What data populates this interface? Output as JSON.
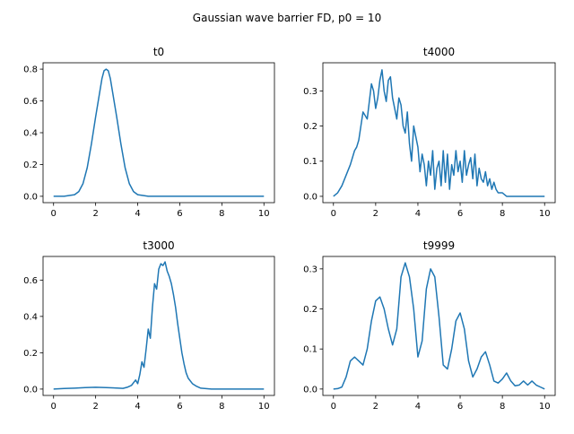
{
  "figure": {
    "suptitle": "Gaussian wave barrier FD, p0 = 10"
  },
  "style": {
    "line_color": "#1f77b4",
    "axis_color": "#000000",
    "background": "#ffffff"
  },
  "chart_data": [
    {
      "type": "line",
      "title": "t0",
      "xlabel": "",
      "ylabel": "",
      "xlim": [
        -0.5,
        10.5
      ],
      "ylim": [
        -0.04,
        0.84
      ],
      "xticks": [
        0,
        2,
        4,
        6,
        8,
        10
      ],
      "xtick_labels": [
        "0",
        "2",
        "4",
        "6",
        "8",
        "10"
      ],
      "yticks": [
        0.0,
        0.2,
        0.4,
        0.6,
        0.8
      ],
      "ytick_labels": [
        "0.0",
        "0.2",
        "0.4",
        "0.6",
        "0.8"
      ],
      "grid": false,
      "series": [
        {
          "x": [
            0,
            0.5,
            1.0,
            1.2,
            1.4,
            1.6,
            1.8,
            2.0,
            2.2,
            2.3,
            2.4,
            2.5,
            2.6,
            2.7,
            2.8,
            3.0,
            3.2,
            3.4,
            3.6,
            3.8,
            4.0,
            4.5,
            5,
            6,
            7,
            8,
            9,
            10
          ],
          "y": [
            0,
            0,
            0.01,
            0.03,
            0.08,
            0.18,
            0.33,
            0.5,
            0.66,
            0.74,
            0.79,
            0.8,
            0.79,
            0.74,
            0.66,
            0.5,
            0.33,
            0.18,
            0.08,
            0.03,
            0.01,
            0,
            0,
            0,
            0,
            0,
            0,
            0
          ]
        }
      ]
    },
    {
      "type": "line",
      "title": "t4000",
      "xlabel": "",
      "ylabel": "",
      "xlim": [
        -0.5,
        10.5
      ],
      "ylim": [
        -0.018,
        0.38
      ],
      "xticks": [
        0,
        2,
        4,
        6,
        8,
        10
      ],
      "xtick_labels": [
        "0",
        "2",
        "4",
        "6",
        "8",
        "10"
      ],
      "yticks": [
        0.0,
        0.1,
        0.2,
        0.3
      ],
      "ytick_labels": [
        "0.0",
        "0.1",
        "0.2",
        "0.3"
      ],
      "grid": false,
      "series": [
        {
          "x": [
            0,
            0.2,
            0.4,
            0.6,
            0.8,
            1.0,
            1.1,
            1.2,
            1.3,
            1.4,
            1.5,
            1.6,
            1.7,
            1.8,
            1.9,
            2.0,
            2.1,
            2.2,
            2.3,
            2.4,
            2.5,
            2.6,
            2.7,
            2.8,
            2.9,
            3.0,
            3.1,
            3.2,
            3.3,
            3.4,
            3.5,
            3.6,
            3.7,
            3.8,
            3.9,
            4.0,
            4.1,
            4.2,
            4.3,
            4.4,
            4.5,
            4.6,
            4.7,
            4.8,
            4.9,
            5.0,
            5.1,
            5.2,
            5.3,
            5.4,
            5.5,
            5.6,
            5.7,
            5.8,
            5.9,
            6.0,
            6.1,
            6.2,
            6.3,
            6.4,
            6.5,
            6.6,
            6.7,
            6.8,
            6.9,
            7.0,
            7.1,
            7.2,
            7.3,
            7.4,
            7.5,
            7.6,
            7.7,
            7.8,
            8.0,
            8.2,
            8.5,
            9,
            10
          ],
          "y": [
            0,
            0.01,
            0.03,
            0.06,
            0.09,
            0.13,
            0.14,
            0.16,
            0.2,
            0.24,
            0.23,
            0.22,
            0.27,
            0.32,
            0.3,
            0.25,
            0.28,
            0.33,
            0.36,
            0.3,
            0.27,
            0.33,
            0.34,
            0.28,
            0.25,
            0.22,
            0.28,
            0.26,
            0.2,
            0.18,
            0.24,
            0.15,
            0.1,
            0.2,
            0.17,
            0.14,
            0.07,
            0.12,
            0.09,
            0.03,
            0.1,
            0.06,
            0.13,
            0.02,
            0.08,
            0.1,
            0.03,
            0.13,
            0.04,
            0.12,
            0.02,
            0.09,
            0.06,
            0.13,
            0.07,
            0.1,
            0.04,
            0.13,
            0.06,
            0.09,
            0.11,
            0.05,
            0.12,
            0.03,
            0.08,
            0.05,
            0.04,
            0.07,
            0.03,
            0.05,
            0.02,
            0.04,
            0.02,
            0.01,
            0.01,
            0,
            0,
            0,
            0
          ]
        }
      ]
    },
    {
      "type": "line",
      "title": "t3000",
      "xlabel": "",
      "ylabel": "",
      "xlim": [
        -0.5,
        10.5
      ],
      "ylim": [
        -0.035,
        0.73
      ],
      "xticks": [
        0,
        2,
        4,
        6,
        8,
        10
      ],
      "xtick_labels": [
        "0",
        "2",
        "4",
        "6",
        "8",
        "10"
      ],
      "yticks": [
        0.0,
        0.2,
        0.4,
        0.6
      ],
      "ytick_labels": [
        "0.0",
        "0.2",
        "0.4",
        "0.6"
      ],
      "grid": false,
      "series": [
        {
          "x": [
            0,
            0.5,
            1.0,
            1.5,
            2.0,
            2.5,
            3.0,
            3.3,
            3.5,
            3.7,
            3.9,
            4.0,
            4.1,
            4.2,
            4.3,
            4.4,
            4.5,
            4.6,
            4.7,
            4.8,
            4.9,
            5.0,
            5.1,
            5.2,
            5.3,
            5.4,
            5.5,
            5.6,
            5.7,
            5.8,
            5.9,
            6.0,
            6.1,
            6.2,
            6.3,
            6.4,
            6.6,
            6.8,
            7.0,
            7.5,
            8,
            9,
            10
          ],
          "y": [
            0,
            0.003,
            0.005,
            0.008,
            0.01,
            0.008,
            0.006,
            0.004,
            0.01,
            0.02,
            0.05,
            0.03,
            0.08,
            0.15,
            0.12,
            0.22,
            0.33,
            0.28,
            0.45,
            0.58,
            0.55,
            0.66,
            0.69,
            0.68,
            0.7,
            0.65,
            0.62,
            0.58,
            0.52,
            0.45,
            0.36,
            0.28,
            0.2,
            0.14,
            0.09,
            0.06,
            0.03,
            0.015,
            0.005,
            0,
            0,
            0,
            0
          ]
        }
      ]
    },
    {
      "type": "line",
      "title": "t9999",
      "xlabel": "",
      "ylabel": "",
      "xlim": [
        -0.5,
        10.5
      ],
      "ylim": [
        -0.016,
        0.331
      ],
      "xticks": [
        0,
        2,
        4,
        6,
        8,
        10
      ],
      "xtick_labels": [
        "0",
        "2",
        "4",
        "6",
        "8",
        "10"
      ],
      "yticks": [
        0.0,
        0.1,
        0.2,
        0.3
      ],
      "ytick_labels": [
        "0.0",
        "0.1",
        "0.2",
        "0.3"
      ],
      "grid": false,
      "series": [
        {
          "x": [
            0,
            0.2,
            0.4,
            0.6,
            0.8,
            1.0,
            1.2,
            1.4,
            1.6,
            1.8,
            2.0,
            2.2,
            2.4,
            2.6,
            2.8,
            3.0,
            3.2,
            3.4,
            3.6,
            3.8,
            4.0,
            4.2,
            4.4,
            4.6,
            4.8,
            5.0,
            5.2,
            5.4,
            5.6,
            5.8,
            6.0,
            6.2,
            6.4,
            6.6,
            6.8,
            7.0,
            7.2,
            7.4,
            7.6,
            7.8,
            8.0,
            8.2,
            8.4,
            8.6,
            8.8,
            9.0,
            9.2,
            9.4,
            9.6,
            9.8,
            10.0
          ],
          "y": [
            0,
            0.001,
            0.005,
            0.03,
            0.07,
            0.08,
            0.07,
            0.06,
            0.1,
            0.17,
            0.22,
            0.23,
            0.2,
            0.15,
            0.11,
            0.15,
            0.28,
            0.315,
            0.28,
            0.2,
            0.08,
            0.12,
            0.25,
            0.3,
            0.28,
            0.18,
            0.06,
            0.05,
            0.1,
            0.17,
            0.19,
            0.15,
            0.07,
            0.03,
            0.05,
            0.08,
            0.093,
            0.06,
            0.02,
            0.015,
            0.025,
            0.04,
            0.02,
            0.008,
            0.01,
            0.02,
            0.01,
            0.02,
            0.01,
            0.005,
            0
          ]
        }
      ]
    }
  ]
}
